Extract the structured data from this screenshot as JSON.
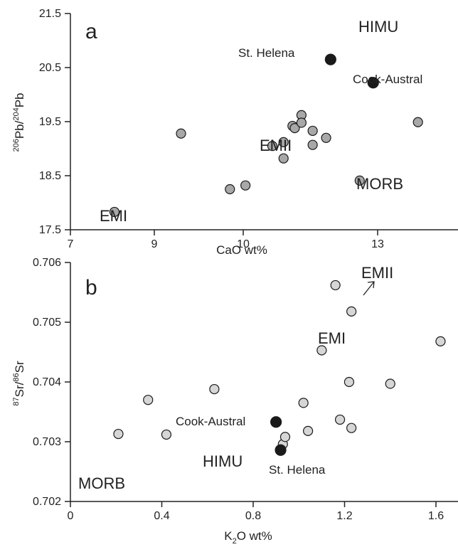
{
  "chart_data": [
    {
      "type": "scatter",
      "panel": "a",
      "xlabel": "CaO wt%",
      "ylabel_parts": {
        "sup1": "206",
        "mid": "Pb/",
        "sup2": "204",
        "end": "Pb"
      },
      "xlim": [
        7,
        14
      ],
      "ylim": [
        17.5,
        21.5
      ],
      "xticks": [
        "7",
        "9",
        "10",
        "13"
      ],
      "yticks": [
        "17.5",
        "18.5",
        "19.5",
        "20.5",
        "21.5"
      ],
      "series": [
        {
          "marker": "grey",
          "color": "#a8a8a8",
          "points": [
            {
              "x": 8.05,
              "y": 17.83
            },
            {
              "x": 9.3,
              "y": 19.28
            },
            {
              "x": 9.85,
              "y": 18.25
            },
            {
              "x": 10.05,
              "y": 18.32
            },
            {
              "x": 10.65,
              "y": 19.05
            },
            {
              "x": 10.9,
              "y": 19.12
            },
            {
              "x": 10.9,
              "y": 18.82
            },
            {
              "x": 11.1,
              "y": 19.42
            },
            {
              "x": 11.15,
              "y": 19.38
            },
            {
              "x": 11.3,
              "y": 19.62
            },
            {
              "x": 11.3,
              "y": 19.48
            },
            {
              "x": 11.55,
              "y": 19.33
            },
            {
              "x": 11.55,
              "y": 19.07
            },
            {
              "x": 11.85,
              "y": 19.2
            },
            {
              "x": 12.6,
              "y": 18.41
            },
            {
              "x": 13.9,
              "y": 19.49
            }
          ]
        },
        {
          "marker": "black",
          "color": "#1a1a1a",
          "points": [
            {
              "x": 11.95,
              "y": 20.65
            },
            {
              "x": 12.9,
              "y": 20.22
            }
          ]
        }
      ],
      "annotations": {
        "letter": "a",
        "himu": "HIMU",
        "st_helena": "St. Helena",
        "cook_austral": "Cook-Austral",
        "emii": "EMII",
        "morb": "MORB",
        "emi": "EMI"
      }
    },
    {
      "type": "scatter",
      "panel": "b",
      "xlabel_parts": {
        "a": "K",
        "sub": "2",
        "b": "O wt%"
      },
      "ylabel_parts": {
        "sup1": "87",
        "mid": "Sr/",
        "sup2": "86",
        "end": "Sr"
      },
      "xlim": [
        0,
        1.8
      ],
      "ylim": [
        0.702,
        0.706
      ],
      "xticks": [
        "0",
        "0.4",
        "0.8",
        "1.2",
        "1.6"
      ],
      "yticks": [
        "0.702",
        "0.703",
        "0.704",
        "0.705",
        "0.706"
      ],
      "series": [
        {
          "marker": "light",
          "color": "#d6d6d6",
          "points": [
            {
              "x": 0.21,
              "y": 0.70313
            },
            {
              "x": 0.34,
              "y": 0.7037
            },
            {
              "x": 0.42,
              "y": 0.70312
            },
            {
              "x": 0.63,
              "y": 0.70388
            },
            {
              "x": 0.93,
              "y": 0.70296
            },
            {
              "x": 0.94,
              "y": 0.70308
            },
            {
              "x": 1.02,
              "y": 0.70365
            },
            {
              "x": 1.04,
              "y": 0.70318
            },
            {
              "x": 1.1,
              "y": 0.70453
            },
            {
              "x": 1.16,
              "y": 0.70562
            },
            {
              "x": 1.18,
              "y": 0.70337
            },
            {
              "x": 1.22,
              "y": 0.704
            },
            {
              "x": 1.23,
              "y": 0.70323
            },
            {
              "x": 1.23,
              "y": 0.70518
            },
            {
              "x": 1.4,
              "y": 0.70397
            },
            {
              "x": 1.62,
              "y": 0.70468
            }
          ]
        },
        {
          "marker": "black",
          "color": "#1a1a1a",
          "points": [
            {
              "x": 0.9,
              "y": 0.70333
            },
            {
              "x": 0.92,
              "y": 0.70286
            }
          ]
        }
      ],
      "annotations": {
        "letter": "b",
        "emii": "EMII",
        "emi": "EMI",
        "cook_austral": "Cook-Austral",
        "himu": "HIMU",
        "st_helena": "St. Helena",
        "morb": "MORB"
      }
    }
  ]
}
